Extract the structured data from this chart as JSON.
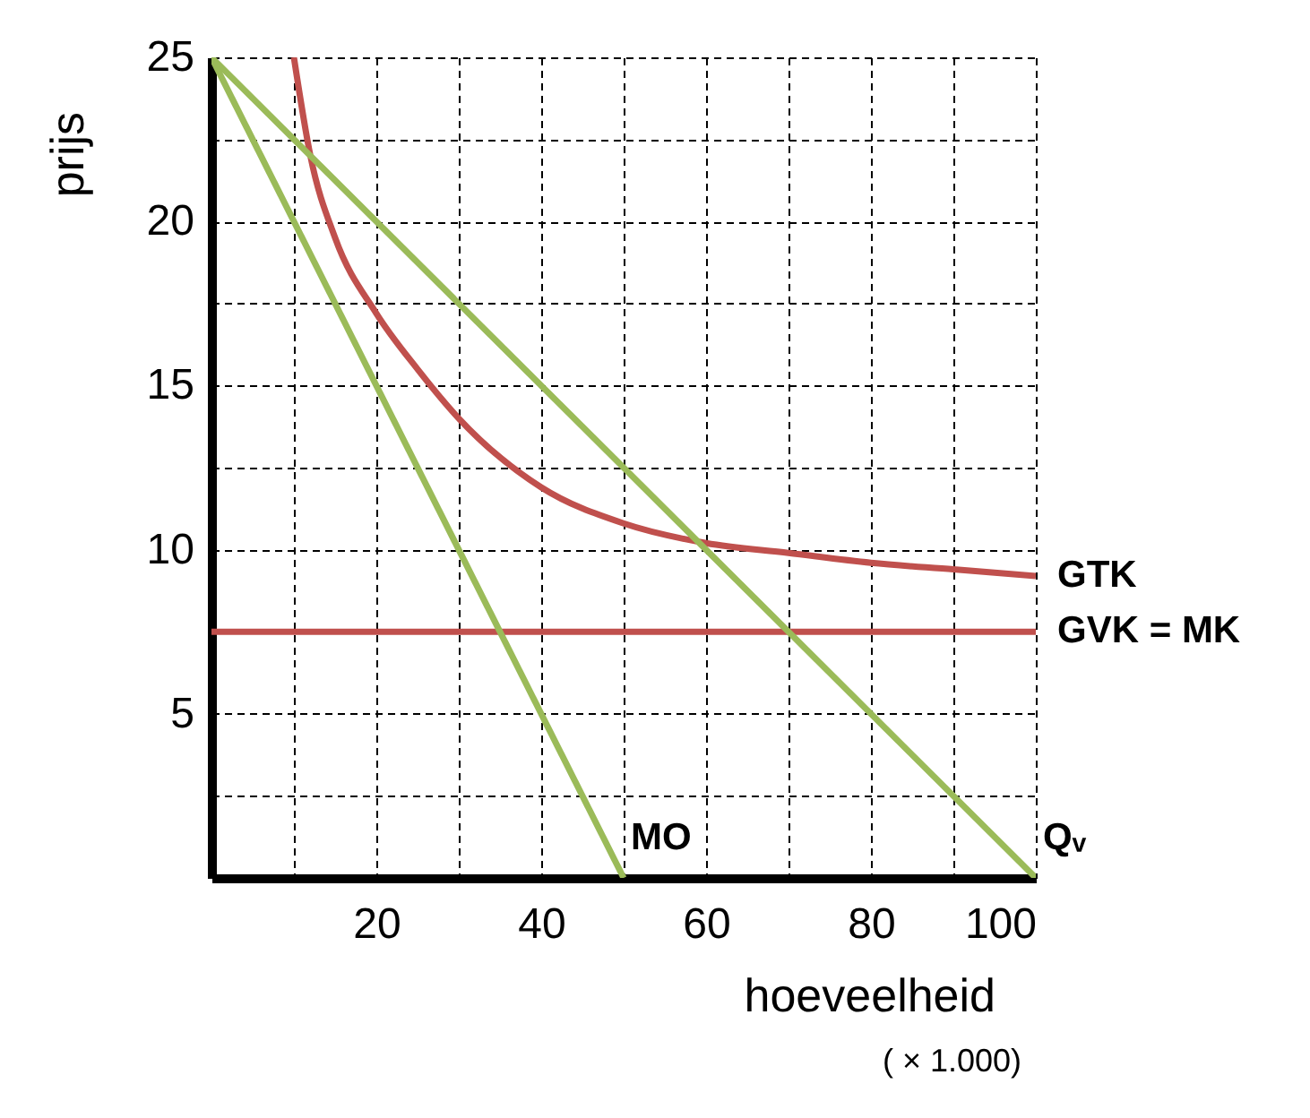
{
  "chart_data": {
    "type": "line",
    "xlabel": "hoeveelheid",
    "ylabel": "prijs",
    "annotations": [
      "( × 1.000)"
    ],
    "xlim": [
      0,
      100
    ],
    "ylim": [
      0,
      25
    ],
    "xticks": [
      {
        "value": 0,
        "label": null
      },
      {
        "value": 10,
        "label": null
      },
      20,
      {
        "value": 30,
        "label": null
      },
      40,
      {
        "value": 50,
        "label": null
      },
      60,
      {
        "value": 70,
        "label": null
      },
      80,
      {
        "value": 90,
        "label": null
      },
      100
    ],
    "yticks": [
      {
        "value": 0,
        "label": null
      },
      {
        "value": 2.5,
        "label": null
      },
      5,
      {
        "value": 7.5,
        "label": null
      },
      10,
      {
        "value": 12.5,
        "label": null
      },
      15,
      {
        "value": 17.5,
        "label": null
      },
      20,
      {
        "value": 22.5,
        "label": null
      },
      25
    ],
    "grid": true,
    "legend": false,
    "series": [
      {
        "name": "GTK",
        "color": "#c0504d",
        "x": [
          10,
          12,
          15,
          20,
          25,
          30,
          40,
          50,
          60,
          70,
          80,
          90,
          100
        ],
        "values": [
          25,
          22,
          19.5,
          17.2,
          15.5,
          14,
          11.9,
          10.8,
          10.2,
          9.9,
          9.6,
          9.4,
          9.2
        ]
      },
      {
        "name": "GVK = MK",
        "color": "#c0504d",
        "x": [
          0,
          100
        ],
        "values": [
          7.5,
          7.5
        ]
      },
      {
        "name": "Qᵥ",
        "color": "#9bbb59",
        "x": [
          0,
          100
        ],
        "values": [
          25,
          0
        ]
      },
      {
        "name": "MO",
        "color": "#9bbb59",
        "x": [
          0,
          50
        ],
        "values": [
          25,
          0
        ]
      }
    ]
  }
}
